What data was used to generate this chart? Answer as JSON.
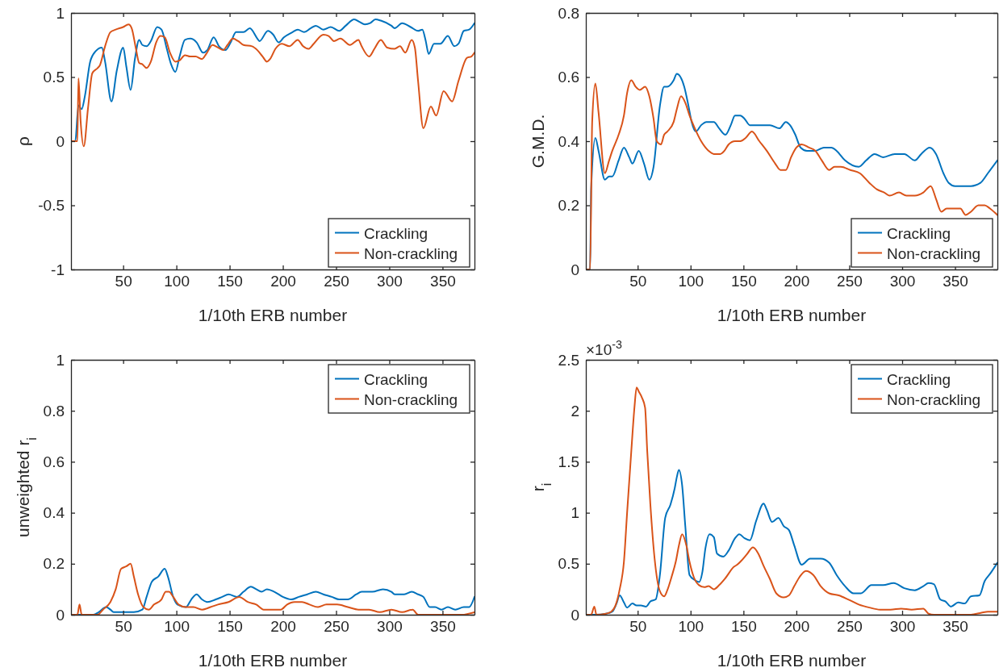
{
  "chart_data": [
    {
      "type": "line",
      "xlabel": "1/10th ERB number",
      "ylabel": "ρ",
      "xlim": [
        1,
        380
      ],
      "ylim": [
        -1,
        1
      ],
      "xticks": [
        50,
        100,
        150,
        200,
        250,
        300,
        350
      ],
      "yticks": [
        -1,
        -0.5,
        0,
        0.5,
        1
      ],
      "legend": "bottom right",
      "grid": false,
      "series": [
        {
          "name": "Crackling",
          "color": "#0072bd",
          "x": [
            1,
            5,
            8,
            11,
            14,
            19,
            24,
            30,
            33,
            39,
            44,
            50,
            53,
            57,
            61,
            65,
            68,
            72,
            76,
            82,
            86,
            91,
            95,
            99,
            103,
            108,
            113,
            119,
            125,
            129,
            135,
            140,
            146,
            151,
            156,
            163,
            169,
            176,
            178,
            186,
            191,
            196,
            201,
            209,
            214,
            220,
            226,
            231,
            238,
            245,
            253,
            259,
            267,
            272,
            277,
            282,
            287,
            292,
            302,
            305,
            312,
            320,
            327,
            331,
            334,
            337,
            342,
            348,
            355,
            361,
            365,
            370,
            375,
            380
          ],
          "values": [
            0,
            0,
            0.28,
            0.25,
            0.35,
            0.62,
            0.7,
            0.73,
            0.62,
            0.31,
            0.55,
            0.73,
            0.58,
            0.4,
            0.64,
            0.79,
            0.75,
            0.74,
            0.78,
            0.89,
            0.87,
            0.72,
            0.6,
            0.54,
            0.66,
            0.79,
            0.8,
            0.77,
            0.69,
            0.71,
            0.81,
            0.74,
            0.71,
            0.77,
            0.85,
            0.85,
            0.88,
            0.8,
            0.78,
            0.86,
            0.83,
            0.77,
            0.81,
            0.85,
            0.87,
            0.85,
            0.88,
            0.9,
            0.87,
            0.89,
            0.86,
            0.9,
            0.95,
            0.93,
            0.91,
            0.92,
            0.95,
            0.94,
            0.9,
            0.88,
            0.92,
            0.89,
            0.86,
            0.87,
            0.79,
            0.68,
            0.76,
            0.76,
            0.82,
            0.74,
            0.76,
            0.86,
            0.87,
            0.92
          ]
        },
        {
          "name": "Non-crackling",
          "color": "#d95319",
          "x": [
            1,
            7,
            8,
            10,
            13,
            17,
            21,
            26,
            28,
            33,
            38,
            43,
            50,
            55,
            58,
            62,
            65,
            68,
            72,
            76,
            81,
            85,
            89,
            94,
            99,
            103,
            108,
            113,
            118,
            124,
            128,
            134,
            139,
            144,
            148,
            153,
            158,
            163,
            171,
            176,
            181,
            185,
            188,
            193,
            199,
            206,
            214,
            219,
            224,
            229,
            238,
            243,
            248,
            254,
            263,
            271,
            274,
            281,
            286,
            292,
            298,
            305,
            310,
            315,
            321,
            324,
            327,
            332,
            339,
            344,
            351,
            359,
            365,
            373,
            377,
            380
          ],
          "values": [
            0,
            0,
            0.49,
            0.16,
            -0.04,
            0.26,
            0.53,
            0.57,
            0.59,
            0.74,
            0.85,
            0.87,
            0.89,
            0.91,
            0.88,
            0.72,
            0.61,
            0.6,
            0.57,
            0.62,
            0.77,
            0.82,
            0.81,
            0.69,
            0.62,
            0.63,
            0.67,
            0.66,
            0.66,
            0.64,
            0.68,
            0.75,
            0.73,
            0.71,
            0.75,
            0.8,
            0.78,
            0.75,
            0.74,
            0.71,
            0.66,
            0.62,
            0.64,
            0.72,
            0.76,
            0.74,
            0.79,
            0.74,
            0.72,
            0.76,
            0.83,
            0.82,
            0.78,
            0.8,
            0.75,
            0.79,
            0.74,
            0.66,
            0.72,
            0.79,
            0.73,
            0.72,
            0.74,
            0.69,
            0.79,
            0.73,
            0.47,
            0.1,
            0.27,
            0.2,
            0.39,
            0.31,
            0.47,
            0.65,
            0.66,
            0.69
          ]
        }
      ]
    },
    {
      "type": "line",
      "xlabel": "1/10th ERB number",
      "ylabel": "G.M.D.",
      "xlim": [
        1,
        390
      ],
      "ylim": [
        0,
        0.8
      ],
      "xticks": [
        50,
        100,
        150,
        200,
        250,
        300,
        350
      ],
      "yticks": [
        0,
        0.2,
        0.4,
        0.6,
        0.8
      ],
      "legend": "bottom right",
      "grid": false,
      "series": [
        {
          "name": "Crackling",
          "color": "#0072bd",
          "x": [
            1,
            5,
            6,
            10,
            13,
            19,
            23,
            26,
            32,
            37,
            42,
            45,
            51,
            56,
            61,
            65,
            71,
            75,
            78,
            84,
            87,
            94,
            98,
            101,
            105,
            110,
            115,
            122,
            127,
            133,
            138,
            142,
            147,
            151,
            156,
            165,
            175,
            184,
            190,
            194,
            199,
            204,
            210,
            218,
            226,
            233,
            238,
            246,
            259,
            266,
            274,
            282,
            293,
            302,
            312,
            318,
            326,
            332,
            339,
            344,
            350,
            358,
            365,
            374,
            381,
            390
          ],
          "values": [
            0,
            0,
            0.25,
            0.41,
            0.37,
            0.28,
            0.29,
            0.29,
            0.34,
            0.38,
            0.35,
            0.33,
            0.37,
            0.33,
            0.28,
            0.32,
            0.51,
            0.57,
            0.57,
            0.59,
            0.61,
            0.57,
            0.51,
            0.46,
            0.43,
            0.45,
            0.46,
            0.46,
            0.44,
            0.42,
            0.45,
            0.48,
            0.48,
            0.47,
            0.45,
            0.45,
            0.45,
            0.44,
            0.46,
            0.45,
            0.42,
            0.38,
            0.37,
            0.37,
            0.38,
            0.38,
            0.37,
            0.34,
            0.32,
            0.34,
            0.36,
            0.35,
            0.36,
            0.36,
            0.34,
            0.36,
            0.38,
            0.36,
            0.3,
            0.27,
            0.26,
            0.26,
            0.26,
            0.27,
            0.3,
            0.34
          ]
        },
        {
          "name": "Non-crackling",
          "color": "#d95319",
          "x": [
            1,
            5,
            7,
            10,
            13,
            19,
            23,
            26,
            32,
            37,
            40,
            44,
            48,
            52,
            57,
            61,
            65,
            68,
            72,
            75,
            78,
            84,
            87,
            91,
            95,
            99,
            104,
            110,
            117,
            122,
            128,
            132,
            136,
            142,
            147,
            152,
            158,
            165,
            172,
            180,
            185,
            190,
            195,
            200,
            205,
            212,
            218,
            224,
            231,
            236,
            242,
            251,
            260,
            269,
            276,
            283,
            288,
            297,
            304,
            312,
            320,
            327,
            332,
            337,
            342,
            346,
            355,
            360,
            365,
            372,
            378,
            383,
            390
          ],
          "values": [
            0,
            0,
            0.46,
            0.58,
            0.49,
            0.3,
            0.34,
            0.37,
            0.42,
            0.48,
            0.55,
            0.59,
            0.57,
            0.56,
            0.57,
            0.54,
            0.47,
            0.4,
            0.39,
            0.42,
            0.43,
            0.46,
            0.5,
            0.54,
            0.52,
            0.48,
            0.44,
            0.4,
            0.37,
            0.36,
            0.36,
            0.37,
            0.39,
            0.4,
            0.4,
            0.41,
            0.43,
            0.4,
            0.37,
            0.33,
            0.31,
            0.31,
            0.35,
            0.38,
            0.39,
            0.38,
            0.37,
            0.34,
            0.31,
            0.32,
            0.32,
            0.31,
            0.3,
            0.27,
            0.25,
            0.24,
            0.23,
            0.24,
            0.23,
            0.23,
            0.24,
            0.26,
            0.22,
            0.18,
            0.19,
            0.19,
            0.19,
            0.17,
            0.18,
            0.2,
            0.2,
            0.19,
            0.17
          ]
        }
      ]
    },
    {
      "type": "line",
      "xlabel": "1/10th ERB number",
      "ylabel": "unweighted r$_{i}$",
      "xlim": [
        1,
        380
      ],
      "ylim": [
        0,
        1
      ],
      "xticks": [
        50,
        100,
        150,
        200,
        250,
        300,
        350
      ],
      "yticks": [
        0,
        0.2,
        0.4,
        0.6,
        0.8,
        1
      ],
      "legend": "top right",
      "grid": false,
      "series": [
        {
          "name": "Crackling",
          "color": "#0072bd",
          "x": [
            1,
            7,
            12,
            22,
            27,
            34,
            38,
            41,
            48,
            55,
            60,
            68,
            72,
            77,
            83,
            89,
            92,
            97,
            101,
            109,
            114,
            119,
            124,
            129,
            137,
            143,
            149,
            157,
            163,
            170,
            175,
            180,
            185,
            192,
            200,
            208,
            215,
            223,
            231,
            238,
            246,
            253,
            261,
            269,
            274,
            284,
            294,
            302,
            305,
            314,
            321,
            327,
            332,
            338,
            343,
            349,
            355,
            362,
            370,
            375,
            380
          ],
          "values": [
            0,
            0,
            0,
            0,
            0.01,
            0.03,
            0.02,
            0.01,
            0.01,
            0.01,
            0.01,
            0.02,
            0.07,
            0.13,
            0.15,
            0.18,
            0.15,
            0.07,
            0.04,
            0.03,
            0.06,
            0.08,
            0.06,
            0.05,
            0.06,
            0.07,
            0.08,
            0.07,
            0.09,
            0.11,
            0.1,
            0.09,
            0.1,
            0.09,
            0.07,
            0.06,
            0.07,
            0.08,
            0.09,
            0.08,
            0.07,
            0.06,
            0.06,
            0.08,
            0.09,
            0.09,
            0.1,
            0.09,
            0.08,
            0.08,
            0.09,
            0.08,
            0.07,
            0.03,
            0.03,
            0.02,
            0.03,
            0.02,
            0.03,
            0.03,
            0.07
          ]
        },
        {
          "name": "Non-crackling",
          "color": "#d95319",
          "x": [
            1,
            7,
            9,
            11,
            17,
            26,
            31,
            38,
            43,
            48,
            53,
            57,
            60,
            64,
            69,
            74,
            79,
            86,
            90,
            93,
            97,
            102,
            109,
            116,
            124,
            132,
            139,
            149,
            159,
            167,
            175,
            182,
            190,
            198,
            204,
            211,
            218,
            225,
            233,
            241,
            251,
            261,
            271,
            281,
            291,
            302,
            312,
            322,
            327,
            332,
            352,
            368,
            380
          ],
          "values": [
            0,
            0,
            0.04,
            0,
            0,
            0,
            0.02,
            0.05,
            0.1,
            0.18,
            0.19,
            0.2,
            0.15,
            0.08,
            0.03,
            0.02,
            0.04,
            0.06,
            0.09,
            0.09,
            0.07,
            0.04,
            0.03,
            0.03,
            0.02,
            0.03,
            0.04,
            0.05,
            0.07,
            0.05,
            0.04,
            0.02,
            0.02,
            0.02,
            0.04,
            0.05,
            0.05,
            0.04,
            0.03,
            0.04,
            0.04,
            0.03,
            0.02,
            0.02,
            0.01,
            0.02,
            0.01,
            0.02,
            0,
            0,
            0,
            0,
            0.01
          ]
        }
      ]
    },
    {
      "type": "line",
      "xlabel": "1/10th ERB number",
      "ylabel": "r$_{i}$",
      "xlim": [
        1,
        390
      ],
      "ylim": [
        0,
        2.5
      ],
      "xticks": [
        50,
        100,
        150,
        200,
        250,
        300,
        350
      ],
      "yticks": [
        0,
        0.5,
        1,
        1.5,
        2,
        2.5
      ],
      "legend": "top right",
      "grid": false,
      "annotations": [
        "×10$^{-3}$"
      ],
      "series": [
        {
          "name": "Crackling",
          "color": "#0072bd",
          "x": [
            1,
            10,
            20,
            26,
            30,
            33,
            37,
            40,
            45,
            49,
            53,
            58,
            62,
            67,
            71,
            76,
            81,
            85,
            87,
            89,
            92,
            95,
            99,
            104,
            108,
            111,
            114,
            118,
            122,
            125,
            131,
            136,
            142,
            146,
            151,
            156,
            162,
            169,
            172,
            177,
            183,
            188,
            193,
            198,
            205,
            213,
            223,
            231,
            238,
            246,
            254,
            261,
            271,
            282,
            292,
            302,
            312,
            320,
            325,
            330,
            336,
            341,
            346,
            353,
            359,
            365,
            373,
            378,
            383,
            390
          ],
          "values": [
            0,
            0,
            0.01,
            0.03,
            0.11,
            0.19,
            0.12,
            0.07,
            0.11,
            0.09,
            0.09,
            0.08,
            0.13,
            0.15,
            0.39,
            0.95,
            1.08,
            1.24,
            1.35,
            1.42,
            1.27,
            0.87,
            0.39,
            0.34,
            0.32,
            0.41,
            0.65,
            0.79,
            0.76,
            0.6,
            0.57,
            0.63,
            0.75,
            0.79,
            0.75,
            0.73,
            0.92,
            1.09,
            1.03,
            0.91,
            0.95,
            0.87,
            0.83,
            0.68,
            0.49,
            0.55,
            0.55,
            0.51,
            0.39,
            0.28,
            0.21,
            0.21,
            0.29,
            0.29,
            0.31,
            0.26,
            0.24,
            0.28,
            0.31,
            0.3,
            0.15,
            0.13,
            0.08,
            0.12,
            0.11,
            0.18,
            0.19,
            0.33,
            0.4,
            0.51
          ]
        },
        {
          "name": "Non-crackling",
          "color": "#d95319",
          "x": [
            1,
            6,
            9,
            11,
            20,
            25,
            29,
            33,
            37,
            40,
            44,
            47,
            49,
            51,
            54,
            57,
            59,
            62,
            66,
            71,
            75,
            78,
            82,
            86,
            89,
            92,
            96,
            99,
            103,
            108,
            113,
            117,
            122,
            127,
            133,
            141,
            144,
            148,
            153,
            159,
            164,
            169,
            175,
            181,
            188,
            193,
            198,
            203,
            209,
            216,
            223,
            231,
            240,
            249,
            259,
            269,
            279,
            289,
            299,
            309,
            320,
            325,
            330,
            350,
            365,
            375,
            381,
            390
          ],
          "values": [
            0,
            0,
            0.08,
            0,
            0.01,
            0.03,
            0.09,
            0.25,
            0.52,
            1.0,
            1.61,
            2.04,
            2.23,
            2.19,
            2.13,
            2.03,
            1.61,
            1.08,
            0.55,
            0.23,
            0.18,
            0.24,
            0.37,
            0.52,
            0.68,
            0.79,
            0.68,
            0.52,
            0.37,
            0.29,
            0.27,
            0.28,
            0.25,
            0.29,
            0.36,
            0.47,
            0.49,
            0.53,
            0.59,
            0.66,
            0.6,
            0.48,
            0.35,
            0.21,
            0.17,
            0.19,
            0.28,
            0.37,
            0.43,
            0.39,
            0.28,
            0.21,
            0.19,
            0.15,
            0.1,
            0.07,
            0.05,
            0.05,
            0.06,
            0.05,
            0.06,
            0.01,
            0,
            0,
            0,
            0.02,
            0.03,
            0.03
          ]
        }
      ]
    }
  ]
}
